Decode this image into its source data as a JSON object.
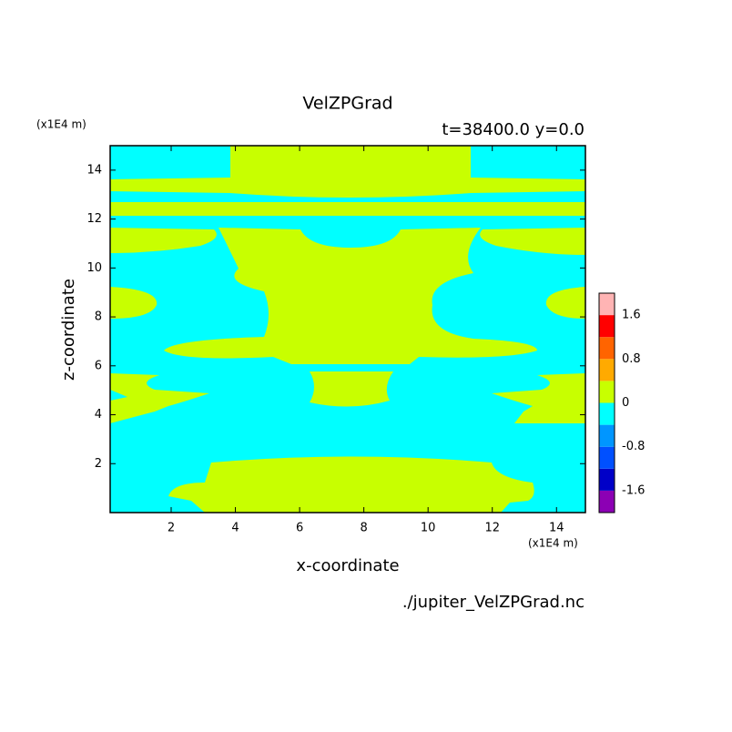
{
  "chart_data": {
    "type": "contour",
    "title": "VelZPGrad",
    "subtitle": "t=38400.0 y=0.0",
    "x_label": "x-coordinate",
    "y_label": "z-coordinate",
    "x_unit": "(x1E4 m)",
    "y_unit": "(x1E4 m)",
    "source": "./jupiter_VelZPGrad.nc",
    "xlim": [
      0.1,
      14.9
    ],
    "xticks": [
      2,
      4,
      6,
      8,
      10,
      12,
      14
    ],
    "ylim": [
      0,
      15
    ],
    "yticks": [
      2,
      4,
      6,
      8,
      10,
      12,
      14
    ],
    "colorbar": {
      "lim": [
        -2,
        2
      ],
      "ticks": [
        -1.6,
        -0.8,
        0,
        0.8,
        1.6
      ],
      "colors": [
        "#8c00b4",
        "#0000c8",
        "#0050ff",
        "#0096ff",
        "#00ffff",
        "#c8ff00",
        "#ffaa00",
        "#ff6400",
        "#ff0000",
        "#ffb4b4"
      ]
    },
    "background_level": 4,
    "region_level": 5
  }
}
